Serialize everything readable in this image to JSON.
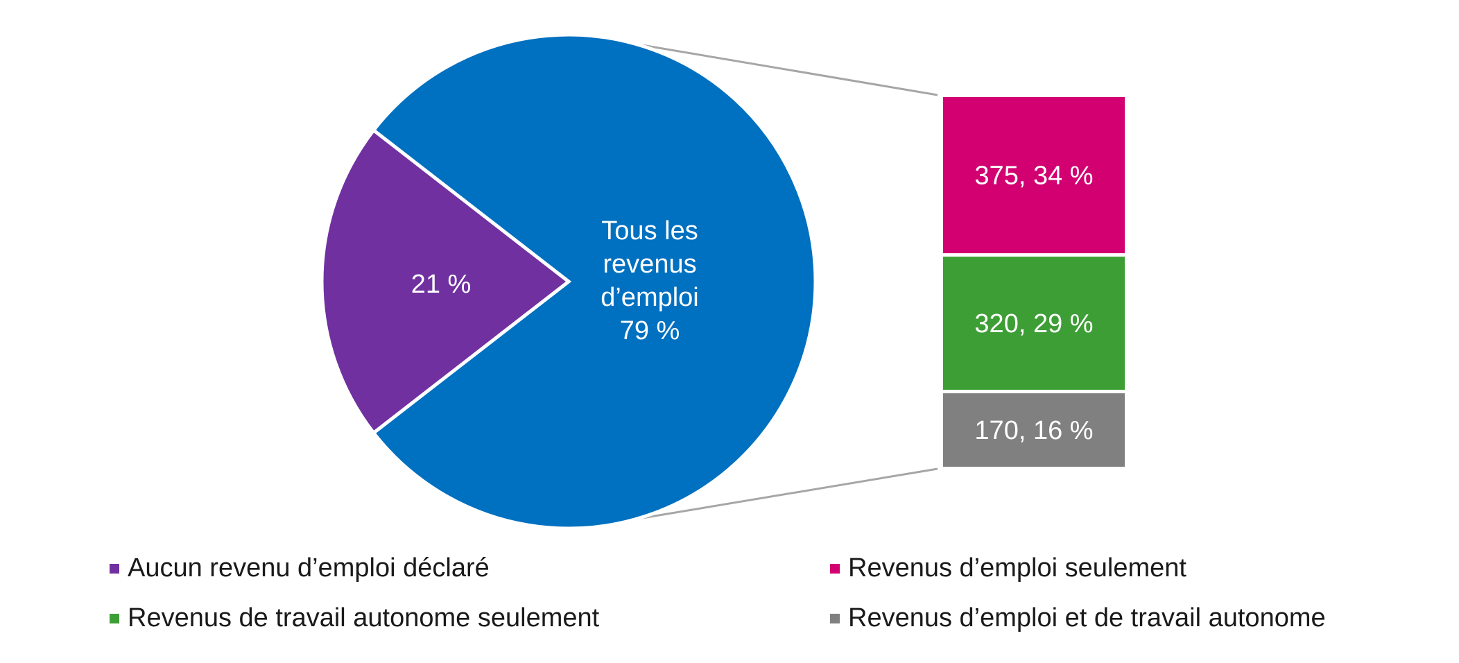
{
  "chart_data": {
    "type": "pie",
    "subtype": "bar-of-pie",
    "pie": {
      "slices": [
        {
          "name": "Aucun revenu d’emploi déclaré",
          "percent": 21,
          "label": "21 %",
          "color": "#7030a0"
        },
        {
          "name": "Tous les revenus d’emploi",
          "percent": 79,
          "label_lines": [
            "Tous les",
            "revenus",
            "d’emploi",
            "79 %"
          ],
          "color": "#0070c0"
        }
      ]
    },
    "bar": {
      "segments": [
        {
          "name": "Revenus d’emploi seulement",
          "value": 375,
          "percent": 34,
          "label": "375, 34 %",
          "color": "#d20070"
        },
        {
          "name": "Revenus de travail autonome seulement",
          "value": 320,
          "percent": 29,
          "label": "320, 29 %",
          "color": "#3d9e35"
        },
        {
          "name": "Revenus d’emploi et de travail autonome",
          "value": 170,
          "percent": 16,
          "label": "170, 16 %",
          "color": "#808080"
        }
      ]
    },
    "legend": [
      {
        "label": "Aucun revenu d’emploi déclaré",
        "color": "#7030a0"
      },
      {
        "label": "Revenus d’emploi seulement",
        "color": "#d20070"
      },
      {
        "label": "Revenus de travail autonome seulement",
        "color": "#3d9e35"
      },
      {
        "label": "Revenus d’emploi et de travail autonome",
        "color": "#808080"
      }
    ],
    "legend_position": "bottom"
  }
}
